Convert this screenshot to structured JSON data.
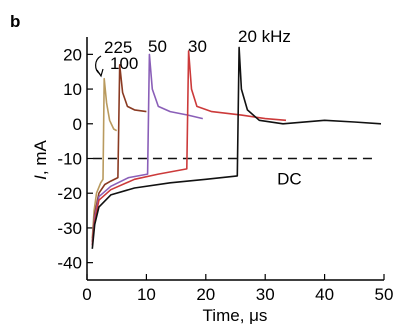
{
  "panel_label": "b",
  "chart_data": {
    "type": "line",
    "xlabel": "Time, μs",
    "ylabel_italic": "I",
    "ylabel_rest": ", mA",
    "xlim": [
      0,
      50
    ],
    "ylim": [
      -45,
      25
    ],
    "xticks": [
      0,
      10,
      20,
      30,
      40,
      50
    ],
    "yticks": [
      -40,
      -30,
      -20,
      -10,
      0,
      10,
      20
    ],
    "grid": false,
    "dc_level": -10,
    "dc_label": "DC",
    "series": [
      {
        "name": "225",
        "color": "#b99a5e",
        "points": [
          [
            0.9,
            -33
          ],
          [
            1.2,
            -25
          ],
          [
            1.6,
            -20
          ],
          [
            2.3,
            -17
          ],
          [
            2.7,
            -16
          ],
          [
            2.9,
            13
          ],
          [
            3.3,
            6
          ],
          [
            3.8,
            1
          ],
          [
            4.5,
            -1.5
          ],
          [
            5.0,
            -2
          ]
        ]
      },
      {
        "name": "100",
        "color": "#8a3a22",
        "points": [
          [
            0.9,
            -34
          ],
          [
            1.3,
            -26
          ],
          [
            2.0,
            -20
          ],
          [
            3.0,
            -17.5
          ],
          [
            4.0,
            -16.5
          ],
          [
            5.2,
            -15.5
          ],
          [
            5.5,
            17
          ],
          [
            6.0,
            9
          ],
          [
            6.8,
            5
          ],
          [
            8.0,
            4
          ],
          [
            10.0,
            3.5
          ]
        ]
      },
      {
        "name": "50",
        "color": "#8a5fb8",
        "points": [
          [
            0.9,
            -35
          ],
          [
            1.3,
            -27
          ],
          [
            2.0,
            -21
          ],
          [
            4.0,
            -18
          ],
          [
            7.0,
            -15.5
          ],
          [
            10.2,
            -14.5
          ],
          [
            10.5,
            20
          ],
          [
            11.0,
            10
          ],
          [
            12.0,
            5
          ],
          [
            14.0,
            3.5
          ],
          [
            17.0,
            2.5
          ],
          [
            19.5,
            1.5
          ]
        ]
      },
      {
        "name": "30",
        "color": "#cc3a3a",
        "points": [
          [
            0.9,
            -35
          ],
          [
            1.3,
            -28
          ],
          [
            2.0,
            -22
          ],
          [
            4.0,
            -19
          ],
          [
            8.0,
            -16
          ],
          [
            12.0,
            -14.5
          ],
          [
            16.8,
            -13
          ],
          [
            17.1,
            21
          ],
          [
            17.6,
            10
          ],
          [
            18.5,
            5
          ],
          [
            21.0,
            3.5
          ],
          [
            26.0,
            2.5
          ],
          [
            30.0,
            1.5
          ],
          [
            33.5,
            1
          ]
        ]
      },
      {
        "name": "20 kHz",
        "color": "#111111",
        "points": [
          [
            0.9,
            -36
          ],
          [
            1.3,
            -29
          ],
          [
            2.0,
            -24
          ],
          [
            4.0,
            -20.5
          ],
          [
            8.0,
            -18.5
          ],
          [
            14.0,
            -17
          ],
          [
            20.0,
            -16
          ],
          [
            25.3,
            -15
          ],
          [
            25.6,
            22
          ],
          [
            26.0,
            10
          ],
          [
            27.0,
            4
          ],
          [
            29.0,
            1
          ],
          [
            33.0,
            0
          ],
          [
            40.0,
            1
          ],
          [
            45.0,
            0.5
          ],
          [
            49.5,
            0
          ]
        ]
      }
    ]
  }
}
